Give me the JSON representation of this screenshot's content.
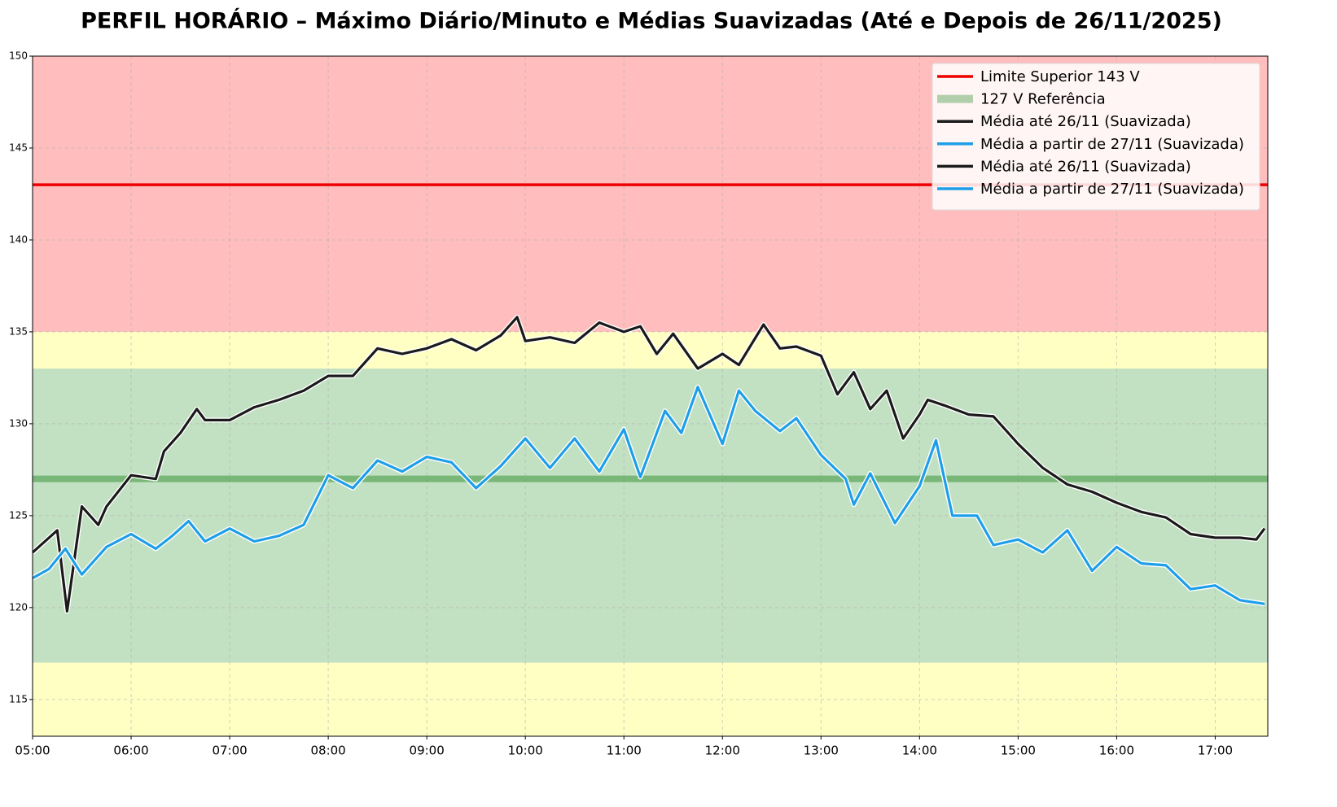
{
  "chart_data": {
    "type": "line",
    "title": "PERFIL HORÁRIO – Máximo Diário/Minuto e Médias Suavizadas (Até e Depois de 26/11/2025)",
    "xlim": [
      "05:00",
      "17:32"
    ],
    "xticks": [
      "05:00",
      "06:00",
      "07:00",
      "08:00",
      "09:00",
      "10:00",
      "11:00",
      "12:00",
      "13:00",
      "14:00",
      "15:00",
      "16:00",
      "17:00"
    ],
    "ylim": [
      113,
      150
    ],
    "yticks": [
      115,
      120,
      125,
      130,
      135,
      140,
      145,
      150
    ],
    "grid": true,
    "legend_position": "upper right",
    "zones": [
      {
        "range": [
          135,
          150
        ],
        "color": "#ffbdbd"
      },
      {
        "range": [
          133,
          135
        ],
        "color": "#ffffc4"
      },
      {
        "range": [
          117,
          133
        ],
        "color": "#c2e0c2"
      },
      {
        "range": [
          113,
          117
        ],
        "color": "#ffffc4"
      }
    ],
    "reference_lines": [
      {
        "name": "Limite Superior 143 V",
        "value": 143,
        "color": "#ee0000",
        "width": 3.5
      },
      {
        "name": "127 V Referência",
        "value": 127,
        "color": "rgba(60,150,60,0.55)",
        "width": 8
      }
    ],
    "series": [
      {
        "name": "Média até 26/11 (Suavizada)",
        "color": "#1a1a1a",
        "x": [
          "05:00",
          "05:15",
          "05:21",
          "05:30",
          "05:40",
          "05:45",
          "06:00",
          "06:15",
          "06:20",
          "06:30",
          "06:40",
          "06:45",
          "07:00",
          "07:15",
          "07:30",
          "07:45",
          "08:00",
          "08:15",
          "08:30",
          "08:45",
          "09:00",
          "09:15",
          "09:30",
          "09:45",
          "09:55",
          "10:00",
          "10:15",
          "10:30",
          "10:45",
          "11:00",
          "11:10",
          "11:20",
          "11:30",
          "11:45",
          "12:00",
          "12:10",
          "12:25",
          "12:35",
          "12:45",
          "13:00",
          "13:10",
          "13:20",
          "13:30",
          "13:40",
          "13:50",
          "14:00",
          "14:05",
          "14:15",
          "14:30",
          "14:45",
          "15:00",
          "15:15",
          "15:30",
          "15:45",
          "16:00",
          "16:15",
          "16:30",
          "16:45",
          "17:00",
          "17:15",
          "17:25",
          "17:30"
        ],
        "values": [
          123,
          124.2,
          119.8,
          125.5,
          124.5,
          125.5,
          127.2,
          127,
          128.5,
          129.5,
          130.8,
          130.2,
          130.2,
          130.9,
          131.3,
          131.8,
          132.6,
          132.6,
          134.1,
          133.8,
          134.1,
          134.6,
          134,
          134.8,
          135.8,
          134.5,
          134.7,
          134.4,
          135.5,
          135,
          135.3,
          133.8,
          134.9,
          133,
          133.8,
          133.2,
          135.4,
          134.1,
          134.2,
          133.7,
          131.6,
          132.8,
          130.8,
          131.8,
          129.2,
          130.5,
          131.3,
          131,
          130.5,
          130.4,
          128.9,
          127.6,
          126.7,
          126.3,
          125.7,
          125.2,
          124.9,
          124,
          123.8,
          123.8,
          123.7,
          124.3
        ]
      },
      {
        "name": "Média a partir de 27/11 (Suavizada)",
        "color": "#1e9ee8",
        "x": [
          "05:00",
          "05:10",
          "05:20",
          "05:30",
          "05:45",
          "06:00",
          "06:15",
          "06:25",
          "06:35",
          "06:45",
          "07:00",
          "07:15",
          "07:30",
          "07:45",
          "08:00",
          "08:15",
          "08:30",
          "08:45",
          "09:00",
          "09:15",
          "09:30",
          "09:45",
          "10:00",
          "10:15",
          "10:30",
          "10:45",
          "11:00",
          "11:10",
          "11:25",
          "11:35",
          "11:45",
          "12:00",
          "12:10",
          "12:20",
          "12:35",
          "12:45",
          "13:00",
          "13:15",
          "13:20",
          "13:30",
          "13:45",
          "14:00",
          "14:10",
          "14:20",
          "14:35",
          "14:45",
          "15:00",
          "15:15",
          "15:30",
          "15:45",
          "16:00",
          "16:15",
          "16:30",
          "16:45",
          "17:00",
          "17:15",
          "17:30"
        ],
        "values": [
          121.6,
          122.1,
          123.2,
          121.8,
          123.3,
          124,
          123.2,
          123.9,
          124.7,
          123.6,
          124.3,
          123.6,
          123.9,
          124.5,
          127.2,
          126.5,
          128,
          127.4,
          128.2,
          127.9,
          126.5,
          127.7,
          129.2,
          127.6,
          129.2,
          127.4,
          129.7,
          127.1,
          130.7,
          129.5,
          132,
          128.9,
          131.8,
          130.7,
          129.6,
          130.3,
          128.3,
          127,
          125.6,
          127.3,
          124.6,
          126.6,
          129.1,
          125,
          125,
          123.4,
          123.7,
          123,
          124.2,
          122,
          123.3,
          122.4,
          122.3,
          121,
          121.2,
          120.4,
          120.2
        ]
      }
    ],
    "legend": [
      {
        "label": "Limite Superior 143 V",
        "color": "#ee0000",
        "width": 3.5
      },
      {
        "label": "127 V Referência",
        "color": "rgba(60,150,60,0.4)",
        "width": 10
      },
      {
        "label": "Média até 26/11 (Suavizada)",
        "color": "#1a1a1a",
        "width": 3.5
      },
      {
        "label": "Média a partir de 27/11 (Suavizada)",
        "color": "#1e9ee8",
        "width": 3.5
      },
      {
        "label": "Média até 26/11 (Suavizada)",
        "color": "#1a1a1a",
        "width": 3.5
      },
      {
        "label": "Média a partir de 27/11 (Suavizada)",
        "color": "#1e9ee8",
        "width": 3.5
      }
    ]
  }
}
